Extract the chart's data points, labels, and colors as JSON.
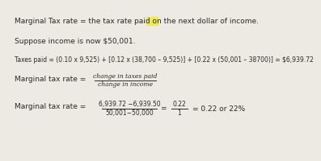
{
  "bg_color": "#ede9e3",
  "text_color": "#2a2a2a",
  "line1": "Marginal Tax rate = the tax rate paid on the next dollar of income.",
  "line2": "Suppose income is now $50,001.",
  "line3": "Taxes paid = (0.10 x 9,525) + [0.12 x (38,700 – 9,525)] + [0.22 x (50,001 – 38700)] = $6,939.72",
  "line4_label": "Marginal tax rate =",
  "frac_num": "change in taxes paid",
  "frac_den": "change in income",
  "line5_label": "Marginal tax rate =",
  "frac2_num": "6,939.72 −6,939.50",
  "frac2_den": "50,001−50,000",
  "frac3_num": "0.22",
  "frac3_den": "1",
  "line5_right": "= 0.22 or 22%",
  "highlight_color": "#f0e840",
  "font_size": 6.5,
  "font_size_small": 5.5
}
